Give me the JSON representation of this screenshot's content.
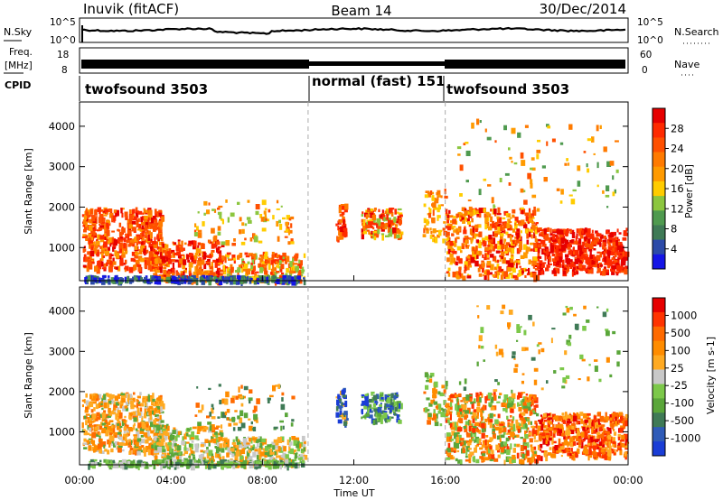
{
  "header": {
    "station": "Inuvik (fitACF)",
    "beam": "Beam 14",
    "date": "30/Dec/2014"
  },
  "noise_panel": {
    "left_label": "N.Sky",
    "right_label": "N.Search",
    "left_ticks": [
      "10^5",
      "10^0"
    ],
    "right_ticks": [
      "10^5",
      "10^0"
    ]
  },
  "freq_panel": {
    "left_label_line1": "Freq.",
    "left_label_line2": "[MHz]",
    "right_label": "Nave",
    "left_ticks": [
      "18",
      "8"
    ],
    "right_ticks": [
      "60",
      "0"
    ]
  },
  "cpid": {
    "label": "CPID",
    "segments": [
      {
        "name": "twofsound 3503",
        "start_hour": 0,
        "end_hour": 10
      },
      {
        "name": "normal (fast) 151",
        "start_hour": 10,
        "end_hour": 16
      },
      {
        "name": "twofsound 3503",
        "start_hour": 16,
        "end_hour": 24
      }
    ]
  },
  "chart_data": [
    {
      "type": "heatmap",
      "title": "",
      "xlabel": "Time UT",
      "ylabel": "Slant Range [km]",
      "xlim": [
        0,
        24
      ],
      "ylim": [
        180,
        4600
      ],
      "x_ticks": [
        "00:00",
        "04:00",
        "08:00",
        "12:00",
        "16:00",
        "20:00",
        "00:00"
      ],
      "y_ticks": [
        "1000",
        "2000",
        "3000",
        "4000"
      ],
      "colorbar": {
        "label": "Power [dB]",
        "ticks": [
          "4",
          "8",
          "12",
          "16",
          "20",
          "24",
          "28"
        ],
        "colors": [
          "#1515e6",
          "#2c4aa8",
          "#3f7a56",
          "#4f9a4f",
          "#8cc63f",
          "#ffcc00",
          "#ff9a00",
          "#ff7a00",
          "#ff5000",
          "#ff2a00",
          "#e60000"
        ]
      }
    },
    {
      "type": "heatmap",
      "title": "",
      "xlabel": "Time UT",
      "ylabel": "Slant Range [km]",
      "xlim": [
        0,
        24
      ],
      "ylim": [
        180,
        4600
      ],
      "x_ticks": [
        "00:00",
        "04:00",
        "08:00",
        "12:00",
        "16:00",
        "20:00",
        "00:00"
      ],
      "y_ticks": [
        "1000",
        "2000",
        "3000",
        "4000"
      ],
      "colorbar": {
        "label": "Velocity [m s-1]",
        "ticks": [
          "1000",
          "500",
          "100",
          "25",
          "-25",
          "-100",
          "-500",
          "-1000"
        ],
        "colors": [
          "#1a3dd6",
          "#2f5bb8",
          "#3f7a56",
          "#5aa63a",
          "#7cc84a",
          "#c8c8c8",
          "#ffaa22",
          "#ff8c00",
          "#ff6a00",
          "#ff3300",
          "#e60000"
        ]
      }
    }
  ],
  "x_axis_title": "Time UT"
}
